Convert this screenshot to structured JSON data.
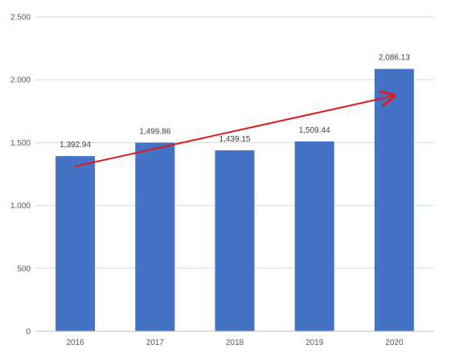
{
  "chart_data": {
    "type": "bar",
    "categories": [
      "2016",
      "2017",
      "2018",
      "2019",
      "2020"
    ],
    "values": [
      1392.94,
      1499.86,
      1439.15,
      1509.44,
      2086.13
    ],
    "data_labels": [
      "1,392.94",
      "1,499.86",
      "1,439.15",
      "1,509.44",
      "2,086.13"
    ],
    "y_ticks": [
      0,
      500,
      1000,
      1500,
      2000,
      2500
    ],
    "y_tick_labels": [
      "0",
      "500",
      "1.000",
      "1.500",
      "2.000",
      "2.500"
    ],
    "ylim": [
      0,
      2500
    ],
    "grid": true,
    "bar_color": "#4472c4",
    "trend_arrow": {
      "color": "#e0191a",
      "from": {
        "x": "2016",
        "y": 1310
      },
      "to": {
        "x": "2020",
        "y": 1870
      }
    }
  }
}
